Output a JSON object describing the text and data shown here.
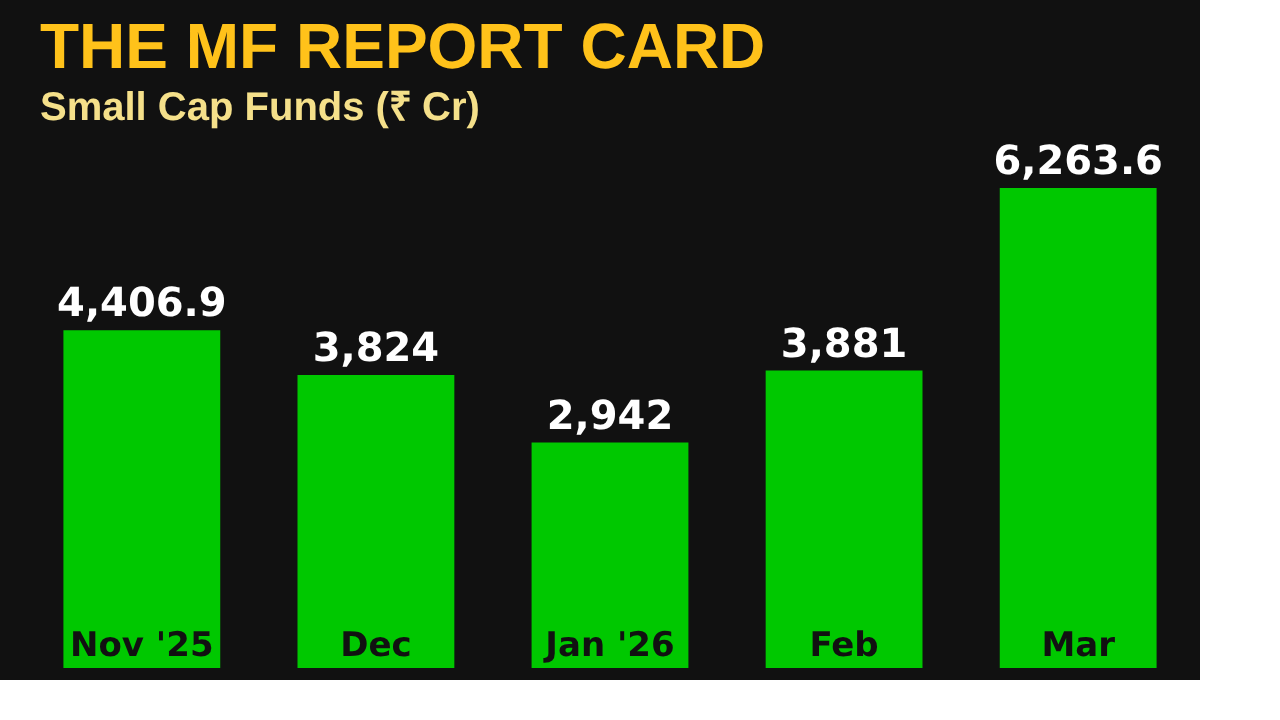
{
  "chart_data": {
    "type": "bar",
    "title": "THE MF REPORT CARD",
    "subtitle": "Small Cap Funds (₹ Cr)",
    "categories": [
      "Nov '25",
      "Dec",
      "Jan '26",
      "Feb",
      "Mar"
    ],
    "values": [
      4406.9,
      3824,
      2942,
      3881,
      6263.6
    ],
    "value_labels": [
      "4,406.9",
      "3,824",
      "2,942",
      "3,881",
      "6,263.6"
    ],
    "color": "#00c800",
    "grid": false,
    "tick_labels": false
  }
}
